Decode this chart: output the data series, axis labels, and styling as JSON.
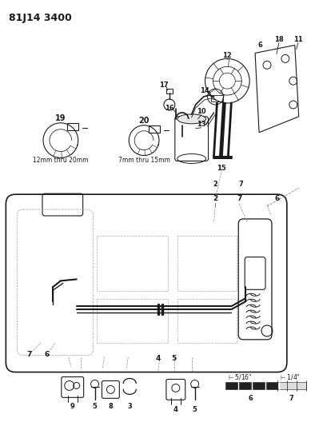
{
  "title": "81J14 3400",
  "bg_color": "#ffffff",
  "line_color": "#1a1a1a",
  "fig_width": 3.89,
  "fig_height": 5.33,
  "dpi": 100
}
